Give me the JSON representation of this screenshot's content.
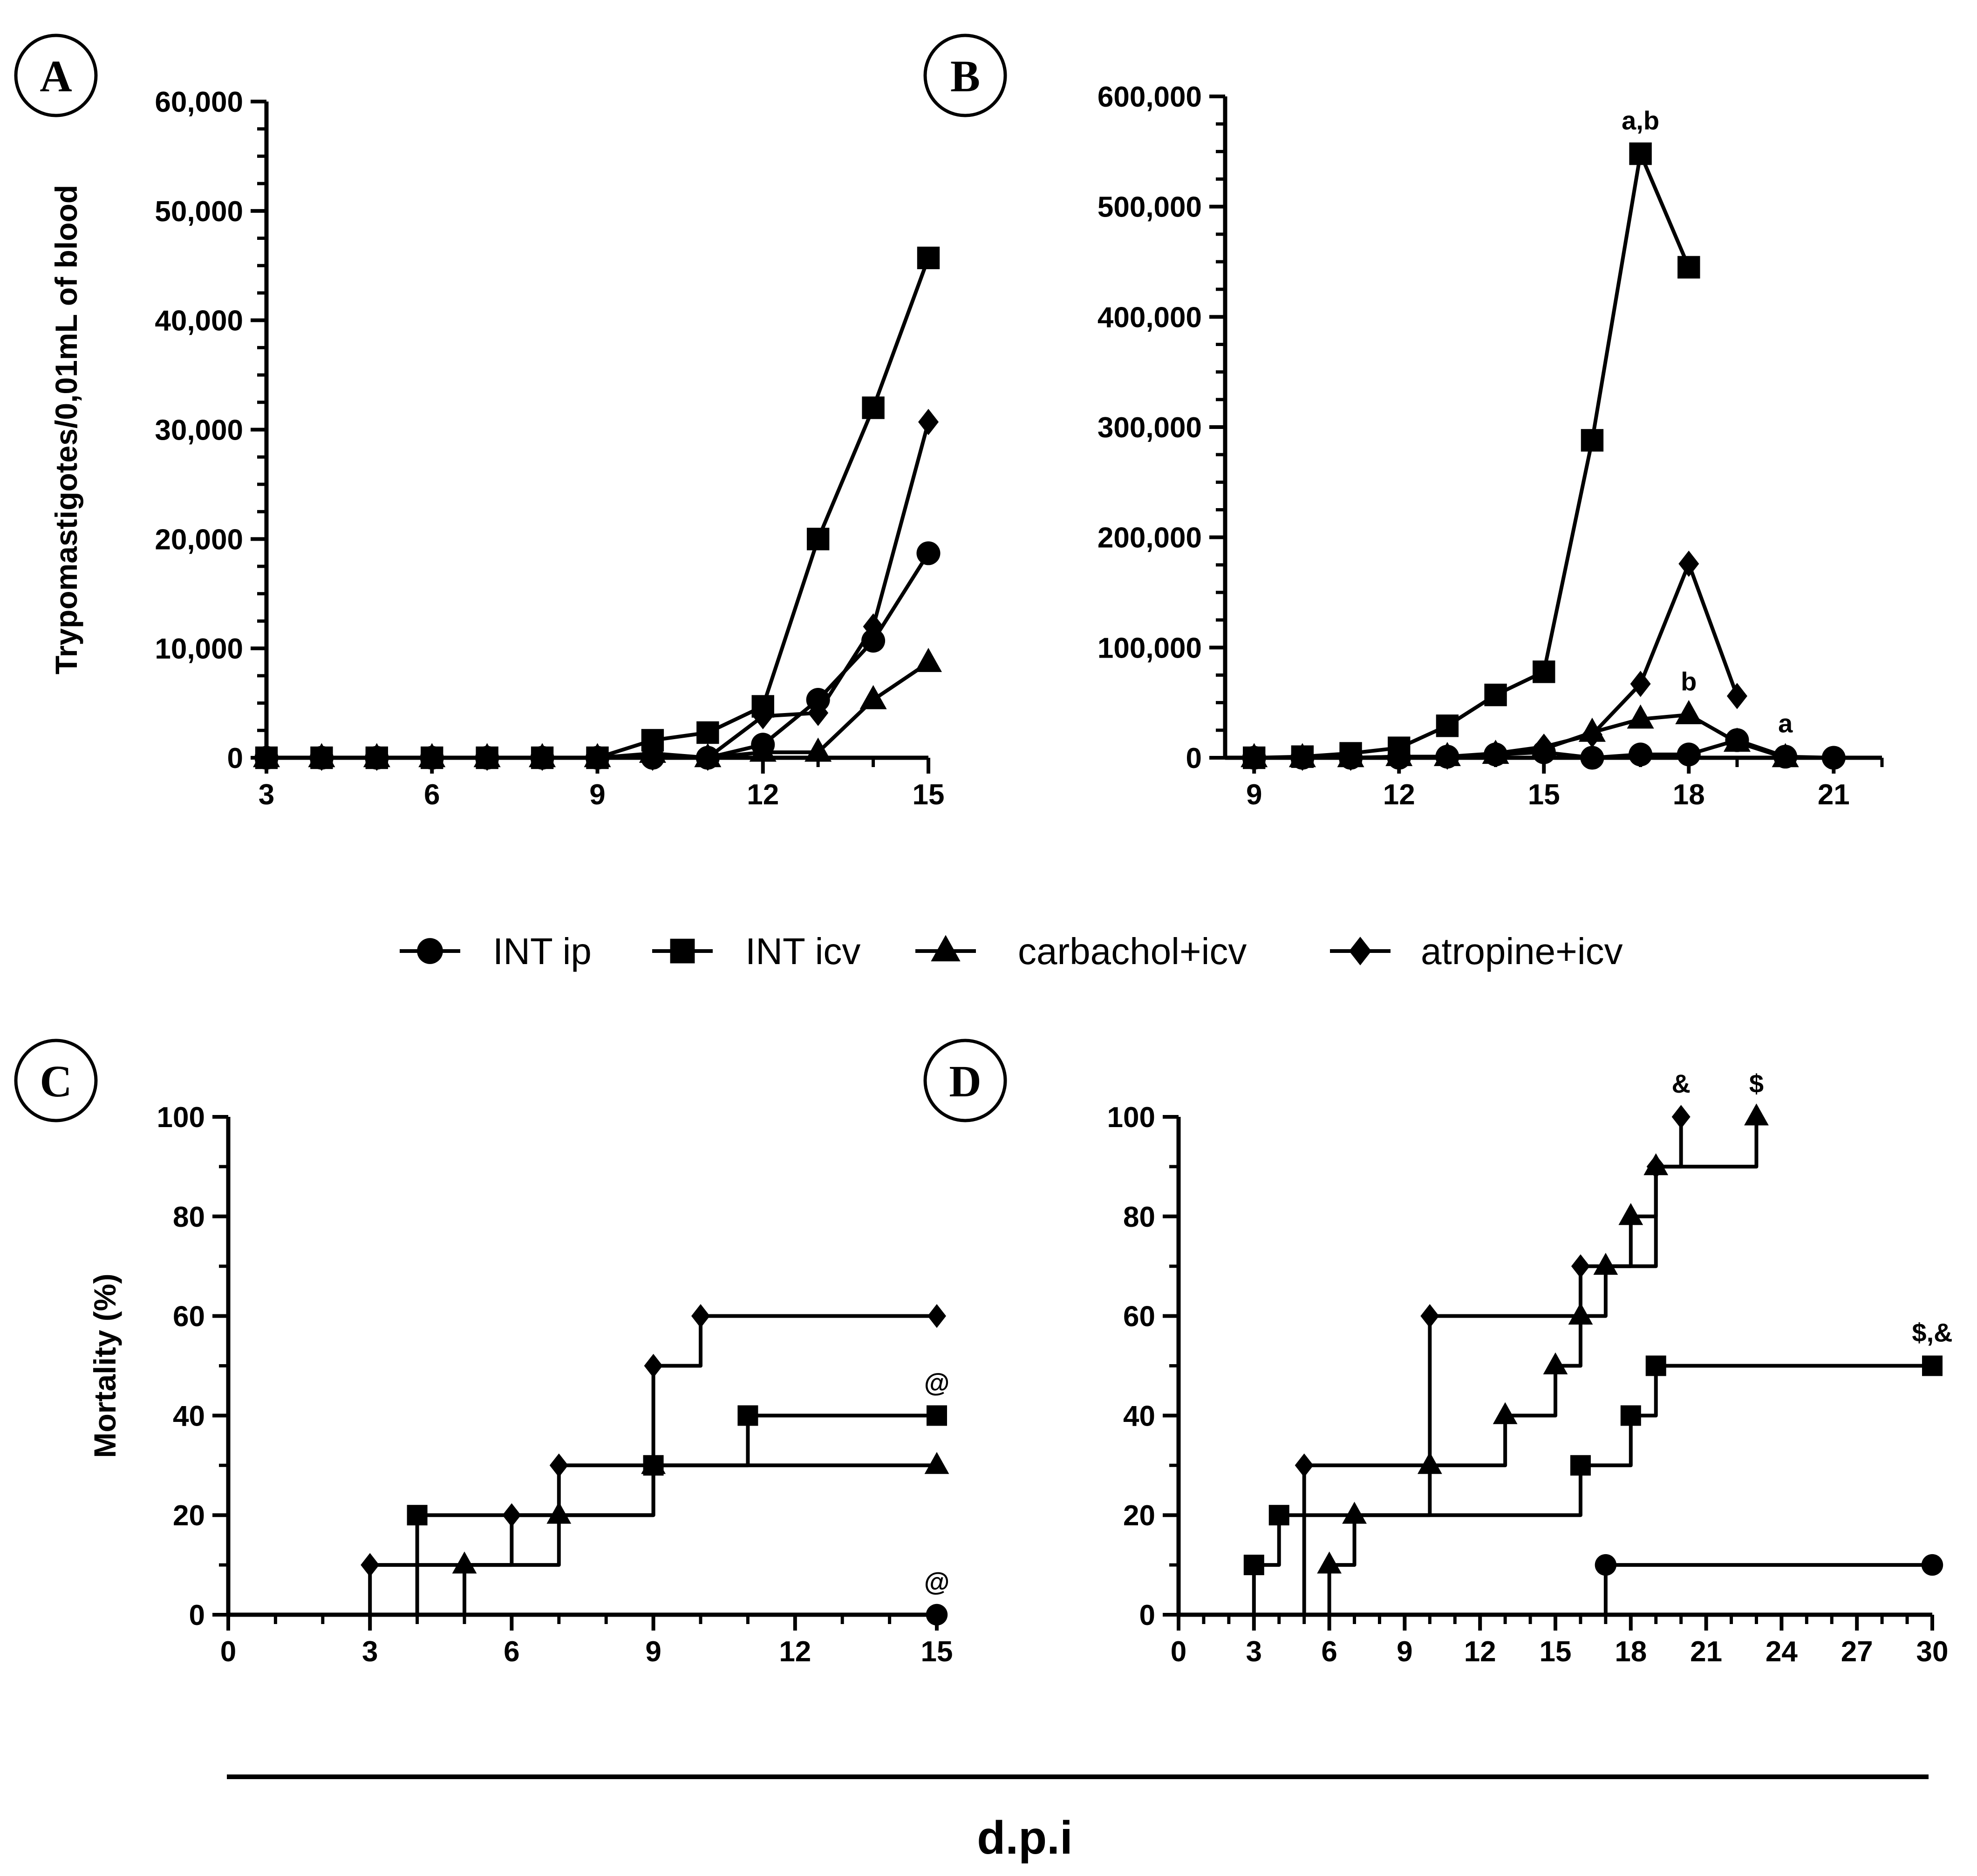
{
  "figure": {
    "x_title": "d.p.i",
    "legend": [
      "INT ip",
      "INT icv",
      "carbachol+icv",
      "atropine+icv"
    ]
  },
  "chart_data": [
    {
      "panel": "A",
      "type": "line",
      "xlabel": "",
      "ylabel": "Trypomastigotes/0,01mL of blood",
      "xlim": [
        3,
        15
      ],
      "ylim": [
        0,
        60000
      ],
      "xticks": [
        "3",
        "6",
        "9",
        "12",
        "15"
      ],
      "yticks": [
        "0",
        "10,000",
        "20,000",
        "30,000",
        "40,000",
        "50,000",
        "60,000"
      ],
      "x": [
        3,
        4,
        5,
        6,
        7,
        8,
        9,
        10,
        11,
        12,
        13,
        14,
        15
      ],
      "series": [
        {
          "name": "INT ip",
          "values": [
            0,
            0,
            0,
            0,
            0,
            0,
            0,
            0,
            0,
            1200,
            5300,
            10700,
            18700
          ]
        },
        {
          "name": "INT icv",
          "values": [
            0,
            0,
            0,
            0,
            0,
            0,
            0,
            1600,
            2300,
            4700,
            20000,
            32000,
            45700
          ]
        },
        {
          "name": "carbachol+icv",
          "values": [
            0,
            0,
            0,
            0,
            0,
            0,
            0,
            400,
            0,
            500,
            500,
            5300,
            8700
          ]
        },
        {
          "name": "atropine+icv",
          "values": [
            0,
            0,
            0,
            0,
            0,
            0,
            0,
            0,
            0,
            3800,
            4100,
            12000,
            30700
          ]
        }
      ],
      "annotations": []
    },
    {
      "panel": "B",
      "type": "line",
      "xlabel": "",
      "ylabel": "",
      "xlim": [
        8.4,
        22
      ],
      "ylim": [
        0,
        600000
      ],
      "xticks": [
        "9",
        "12",
        "15",
        "18",
        "21"
      ],
      "yticks": [
        "0",
        "100,000",
        "200,000",
        "300,000",
        "400,000",
        "500,000",
        "600,000"
      ],
      "series": [
        {
          "name": "INT ip",
          "x": [
            9,
            10,
            11,
            12,
            13,
            14,
            15,
            16,
            17,
            18,
            19,
            20,
            21
          ],
          "values": [
            0,
            0,
            0,
            0,
            1000,
            3000,
            5000,
            0,
            3000,
            3000,
            16000,
            1000,
            0
          ]
        },
        {
          "name": "INT icv",
          "x": [
            9,
            10,
            11,
            12,
            13,
            14,
            15,
            16,
            17,
            18
          ],
          "values": [
            0,
            1000,
            4000,
            9000,
            29000,
            57000,
            78000,
            288000,
            548000,
            445000
          ]
        },
        {
          "name": "carbachol+icv",
          "x": [
            9,
            10,
            11,
            12,
            13,
            14,
            15,
            16,
            17,
            18,
            19,
            20
          ],
          "values": [
            0,
            0,
            0,
            1000,
            1000,
            3000,
            8000,
            23000,
            35000,
            39000,
            14000,
            0
          ]
        },
        {
          "name": "atropine+icv",
          "x": [
            9,
            10,
            11,
            12,
            13,
            14,
            15,
            16,
            17,
            18,
            19
          ],
          "values": [
            0,
            0,
            0,
            1000,
            1000,
            4000,
            10000,
            21000,
            67000,
            176000,
            56000
          ]
        }
      ],
      "annotations": [
        {
          "text": "a,b",
          "x": 17,
          "y": 548000
        },
        {
          "text": "b",
          "x": 18,
          "y": 39000
        },
        {
          "text": "a",
          "x": 20,
          "y": 1000
        }
      ]
    },
    {
      "panel": "C",
      "type": "step",
      "xlabel": "",
      "ylabel": "Mortality (%)",
      "xlim": [
        0,
        15
      ],
      "ylim": [
        0,
        100
      ],
      "xticks": [
        "0",
        "3",
        "6",
        "9",
        "12",
        "15"
      ],
      "yticks": [
        "0",
        "20",
        "40",
        "60",
        "80",
        "100"
      ],
      "series": [
        {
          "name": "INT ip",
          "x": [
            0,
            15
          ],
          "values": [
            0,
            0
          ]
        },
        {
          "name": "INT icv",
          "x": [
            0,
            4,
            9,
            11,
            15
          ],
          "values": [
            0,
            20,
            30,
            40,
            40
          ]
        },
        {
          "name": "carbachol+icv",
          "x": [
            0,
            5,
            7,
            9,
            15
          ],
          "values": [
            0,
            10,
            20,
            30,
            30
          ]
        },
        {
          "name": "atropine+icv",
          "x": [
            0,
            3,
            6,
            7,
            9,
            10,
            15
          ],
          "values": [
            0,
            10,
            20,
            30,
            50,
            60,
            60
          ]
        }
      ],
      "annotations": [
        {
          "text": "@",
          "x": 15,
          "y": 40
        },
        {
          "text": "@",
          "x": 15,
          "y": 0
        }
      ]
    },
    {
      "panel": "D",
      "type": "step",
      "xlabel": "",
      "ylabel": "",
      "xlim": [
        0,
        30
      ],
      "ylim": [
        0,
        100
      ],
      "xticks": [
        "0",
        "3",
        "6",
        "9",
        "12",
        "15",
        "18",
        "21",
        "24",
        "27",
        "30"
      ],
      "yticks": [
        "0",
        "20",
        "40",
        "60",
        "80",
        "100"
      ],
      "series": [
        {
          "name": "INT ip",
          "x": [
            0,
            17,
            30
          ],
          "values": [
            0,
            10,
            10
          ]
        },
        {
          "name": "INT icv",
          "x": [
            0,
            3,
            4,
            16,
            18,
            19,
            30
          ],
          "values": [
            0,
            10,
            20,
            30,
            40,
            50,
            50
          ]
        },
        {
          "name": "carbachol+icv",
          "x": [
            0,
            6,
            7,
            10,
            13,
            15,
            16,
            17,
            18,
            19,
            23
          ],
          "values": [
            0,
            10,
            20,
            30,
            40,
            50,
            60,
            70,
            80,
            90,
            100
          ]
        },
        {
          "name": "atropine+icv",
          "x": [
            0,
            5,
            10,
            16,
            19,
            20
          ],
          "values": [
            0,
            30,
            60,
            70,
            90,
            100
          ]
        }
      ],
      "annotations": [
        {
          "text": "&",
          "x": 20,
          "y": 100
        },
        {
          "text": "$",
          "x": 23,
          "y": 100
        },
        {
          "text": "$,&",
          "x": 30,
          "y": 50
        }
      ]
    }
  ]
}
